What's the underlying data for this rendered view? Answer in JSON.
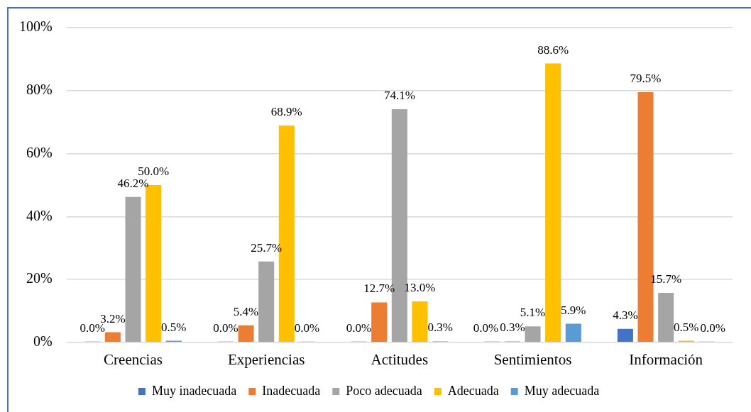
{
  "chart_data": {
    "type": "bar",
    "categories": [
      "Creencias",
      "Experiencias",
      "Actitudes",
      "Sentimientos",
      "Información"
    ],
    "series": [
      {
        "name": "Muy inadecuada",
        "color": "#4472c4",
        "values": [
          0.0,
          0.0,
          0.0,
          0.0,
          4.3
        ],
        "value_labels": [
          "0.0%",
          "0.0%",
          "0.0%",
          "0.0%",
          "4.3%"
        ]
      },
      {
        "name": "Inadecuada",
        "color": "#ed7d31",
        "values": [
          3.2,
          5.4,
          12.7,
          0.3,
          79.5
        ],
        "value_labels": [
          "3.2%",
          "5.4%",
          "12.7%",
          "0.3%",
          "79.5%"
        ]
      },
      {
        "name": "Poco adecuada",
        "color": "#a5a5a5",
        "values": [
          46.2,
          25.7,
          74.1,
          5.1,
          15.7
        ],
        "value_labels": [
          "46.2%",
          "25.7%",
          "74.1%",
          "5.1%",
          "15.7%"
        ]
      },
      {
        "name": "Adecuada",
        "color": "#ffc000",
        "values": [
          50.0,
          68.9,
          13.0,
          88.6,
          0.5
        ],
        "value_labels": [
          "50.0%",
          "68.9%",
          "13.0%",
          "88.6%",
          "0.5%"
        ]
      },
      {
        "name": "Muy adecuada",
        "color": "#5b9bd5",
        "values": [
          0.5,
          0.0,
          0.3,
          5.9,
          0.0
        ],
        "value_labels": [
          "0.5%",
          "0.0%",
          "0.3%",
          "5.9%",
          "0.0%"
        ]
      }
    ],
    "ylim": [
      0,
      100
    ],
    "yticks": [
      {
        "value": 0,
        "label": "0%"
      },
      {
        "value": 20,
        "label": "20%"
      },
      {
        "value": 40,
        "label": "40%"
      },
      {
        "value": 60,
        "label": "60%"
      },
      {
        "value": 80,
        "label": "80%"
      },
      {
        "value": 100,
        "label": "100%"
      }
    ],
    "grid": "y",
    "legend": "bottom"
  }
}
